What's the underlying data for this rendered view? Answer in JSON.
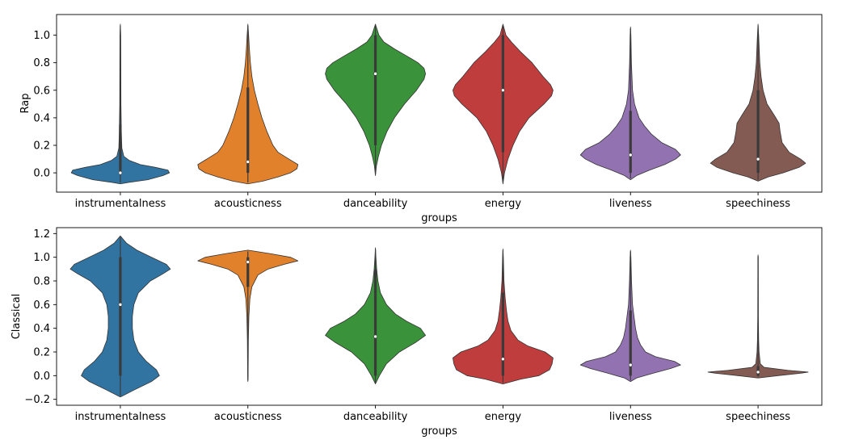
{
  "chart_data": [
    {
      "type": "violin",
      "xlabel": "groups",
      "ylabel": "Rap",
      "ylim": [
        -0.14,
        1.15
      ],
      "yticks": [
        0.0,
        0.2,
        0.4,
        0.6,
        0.8,
        1.0
      ],
      "ytick_labels": [
        "0.0",
        "0.2",
        "0.4",
        "0.6",
        "0.8",
        "1.0"
      ],
      "categories": [
        "instrumentalness",
        "acousticness",
        "danceability",
        "energy",
        "liveness",
        "speechiness"
      ],
      "colors": [
        "#3274a1",
        "#e1812c",
        "#3a923a",
        "#c03d3e",
        "#9372b2",
        "#845b53"
      ],
      "violins": [
        {
          "min": -0.08,
          "max": 1.08,
          "q1": 0.0,
          "median": 0.0,
          "q3": 0.0,
          "box_min": 0.0,
          "box_max": 0.35,
          "profile": [
            [
              -0.08,
              0.0
            ],
            [
              -0.07,
              0.15
            ],
            [
              -0.05,
              0.55
            ],
            [
              -0.02,
              0.85
            ],
            [
              0.0,
              0.98
            ],
            [
              0.02,
              0.95
            ],
            [
              0.04,
              0.7
            ],
            [
              0.06,
              0.4
            ],
            [
              0.09,
              0.18
            ],
            [
              0.12,
              0.07
            ],
            [
              0.18,
              0.03
            ],
            [
              0.3,
              0.02
            ],
            [
              0.5,
              0.012
            ],
            [
              0.8,
              0.01
            ],
            [
              1.0,
              0.008
            ],
            [
              1.08,
              0.0
            ]
          ]
        },
        {
          "min": -0.08,
          "max": 1.08,
          "q1": 0.02,
          "median": 0.08,
          "q3": 0.32,
          "box_min": 0.0,
          "box_max": 0.62,
          "profile": [
            [
              -0.08,
              0.0
            ],
            [
              -0.06,
              0.3
            ],
            [
              -0.03,
              0.6
            ],
            [
              0.0,
              0.85
            ],
            [
              0.03,
              0.98
            ],
            [
              0.06,
              1.0
            ],
            [
              0.1,
              0.82
            ],
            [
              0.15,
              0.6
            ],
            [
              0.2,
              0.5
            ],
            [
              0.3,
              0.38
            ],
            [
              0.4,
              0.28
            ],
            [
              0.5,
              0.2
            ],
            [
              0.6,
              0.13
            ],
            [
              0.7,
              0.08
            ],
            [
              0.8,
              0.05
            ],
            [
              0.9,
              0.03
            ],
            [
              1.0,
              0.015
            ],
            [
              1.08,
              0.0
            ]
          ]
        },
        {
          "min": -0.02,
          "max": 1.08,
          "q1": 0.6,
          "median": 0.72,
          "q3": 0.82,
          "box_min": 0.2,
          "box_max": 1.0,
          "profile": [
            [
              -0.02,
              0.0
            ],
            [
              0.05,
              0.02
            ],
            [
              0.12,
              0.06
            ],
            [
              0.2,
              0.12
            ],
            [
              0.3,
              0.23
            ],
            [
              0.4,
              0.38
            ],
            [
              0.5,
              0.58
            ],
            [
              0.6,
              0.82
            ],
            [
              0.68,
              0.97
            ],
            [
              0.72,
              1.0
            ],
            [
              0.76,
              0.97
            ],
            [
              0.8,
              0.85
            ],
            [
              0.85,
              0.62
            ],
            [
              0.9,
              0.38
            ],
            [
              0.95,
              0.17
            ],
            [
              1.0,
              0.07
            ],
            [
              1.08,
              0.0
            ]
          ]
        },
        {
          "min": -0.08,
          "max": 1.08,
          "q1": 0.5,
          "median": 0.6,
          "q3": 0.74,
          "box_min": 0.15,
          "box_max": 1.0,
          "profile": [
            [
              -0.08,
              0.0
            ],
            [
              0.0,
              0.03
            ],
            [
              0.1,
              0.1
            ],
            [
              0.2,
              0.2
            ],
            [
              0.3,
              0.33
            ],
            [
              0.4,
              0.52
            ],
            [
              0.5,
              0.82
            ],
            [
              0.56,
              0.97
            ],
            [
              0.6,
              1.0
            ],
            [
              0.64,
              0.95
            ],
            [
              0.7,
              0.8
            ],
            [
              0.8,
              0.58
            ],
            [
              0.88,
              0.35
            ],
            [
              0.95,
              0.17
            ],
            [
              1.0,
              0.06
            ],
            [
              1.08,
              0.0
            ]
          ]
        },
        {
          "min": -0.05,
          "max": 1.06,
          "q1": 0.1,
          "median": 0.13,
          "q3": 0.22,
          "box_min": 0.0,
          "box_max": 0.45,
          "profile": [
            [
              -0.05,
              0.0
            ],
            [
              -0.02,
              0.12
            ],
            [
              0.02,
              0.38
            ],
            [
              0.06,
              0.68
            ],
            [
              0.1,
              0.9
            ],
            [
              0.13,
              1.0
            ],
            [
              0.17,
              0.9
            ],
            [
              0.22,
              0.62
            ],
            [
              0.28,
              0.42
            ],
            [
              0.34,
              0.28
            ],
            [
              0.4,
              0.17
            ],
            [
              0.5,
              0.08
            ],
            [
              0.6,
              0.04
            ],
            [
              0.8,
              0.018
            ],
            [
              1.0,
              0.008
            ],
            [
              1.06,
              0.0
            ]
          ]
        },
        {
          "min": -0.06,
          "max": 1.08,
          "q1": 0.05,
          "median": 0.1,
          "q3": 0.28,
          "box_min": 0.0,
          "box_max": 0.6,
          "profile": [
            [
              -0.06,
              0.0
            ],
            [
              -0.03,
              0.2
            ],
            [
              0.0,
              0.5
            ],
            [
              0.04,
              0.82
            ],
            [
              0.07,
              0.95
            ],
            [
              0.1,
              0.85
            ],
            [
              0.15,
              0.62
            ],
            [
              0.22,
              0.48
            ],
            [
              0.3,
              0.44
            ],
            [
              0.36,
              0.42
            ],
            [
              0.42,
              0.32
            ],
            [
              0.5,
              0.18
            ],
            [
              0.6,
              0.1
            ],
            [
              0.7,
              0.06
            ],
            [
              0.8,
              0.035
            ],
            [
              1.0,
              0.012
            ],
            [
              1.08,
              0.0
            ]
          ]
        }
      ]
    },
    {
      "type": "violin",
      "xlabel": "groups",
      "ylabel": "Classical",
      "ylim": [
        -0.25,
        1.25
      ],
      "yticks": [
        -0.2,
        0.0,
        0.2,
        0.4,
        0.6,
        0.8,
        1.0,
        1.2
      ],
      "ytick_labels": [
        "−0.2",
        "0.0",
        "0.2",
        "0.4",
        "0.6",
        "0.8",
        "1.0",
        "1.2"
      ],
      "categories": [
        "instrumentalness",
        "acousticness",
        "danceability",
        "energy",
        "liveness",
        "speechiness"
      ],
      "colors": [
        "#3274a1",
        "#e1812c",
        "#3a923a",
        "#c03d3e",
        "#9372b2",
        "#845b53"
      ],
      "violins": [
        {
          "min": -0.18,
          "max": 1.18,
          "q1": 0.0,
          "median": 0.6,
          "q3": 0.9,
          "box_min": 0.0,
          "box_max": 1.0,
          "profile": [
            [
              -0.18,
              0.0
            ],
            [
              -0.12,
              0.28
            ],
            [
              -0.05,
              0.62
            ],
            [
              0.0,
              0.78
            ],
            [
              0.05,
              0.72
            ],
            [
              0.12,
              0.52
            ],
            [
              0.2,
              0.36
            ],
            [
              0.3,
              0.27
            ],
            [
              0.4,
              0.24
            ],
            [
              0.5,
              0.24
            ],
            [
              0.6,
              0.27
            ],
            [
              0.7,
              0.36
            ],
            [
              0.8,
              0.6
            ],
            [
              0.86,
              0.85
            ],
            [
              0.9,
              1.0
            ],
            [
              0.94,
              0.92
            ],
            [
              1.0,
              0.62
            ],
            [
              1.06,
              0.33
            ],
            [
              1.12,
              0.12
            ],
            [
              1.18,
              0.0
            ]
          ]
        },
        {
          "min": -0.05,
          "max": 1.06,
          "q1": 0.92,
          "median": 0.96,
          "q3": 0.99,
          "box_min": 0.75,
          "box_max": 1.0,
          "profile": [
            [
              -0.05,
              0.0
            ],
            [
              0.0,
              0.005
            ],
            [
              0.3,
              0.01
            ],
            [
              0.5,
              0.02
            ],
            [
              0.65,
              0.04
            ],
            [
              0.75,
              0.08
            ],
            [
              0.85,
              0.2
            ],
            [
              0.9,
              0.4
            ],
            [
              0.94,
              0.72
            ],
            [
              0.97,
              1.0
            ],
            [
              1.0,
              0.85
            ],
            [
              1.03,
              0.45
            ],
            [
              1.06,
              0.0
            ]
          ]
        },
        {
          "min": -0.07,
          "max": 1.08,
          "q1": 0.24,
          "median": 0.33,
          "q3": 0.42,
          "box_min": 0.0,
          "box_max": 0.9,
          "profile": [
            [
              -0.07,
              0.0
            ],
            [
              0.0,
              0.08
            ],
            [
              0.1,
              0.22
            ],
            [
              0.2,
              0.48
            ],
            [
              0.28,
              0.8
            ],
            [
              0.34,
              1.0
            ],
            [
              0.4,
              0.9
            ],
            [
              0.46,
              0.62
            ],
            [
              0.52,
              0.4
            ],
            [
              0.6,
              0.22
            ],
            [
              0.7,
              0.1
            ],
            [
              0.8,
              0.05
            ],
            [
              0.9,
              0.025
            ],
            [
              1.0,
              0.01
            ],
            [
              1.08,
              0.0
            ]
          ]
        },
        {
          "min": -0.07,
          "max": 1.07,
          "q1": 0.08,
          "median": 0.14,
          "q3": 0.28,
          "box_min": 0.0,
          "box_max": 0.7,
          "profile": [
            [
              -0.07,
              0.0
            ],
            [
              -0.03,
              0.35
            ],
            [
              0.0,
              0.72
            ],
            [
              0.05,
              0.93
            ],
            [
              0.1,
              0.98
            ],
            [
              0.15,
              1.0
            ],
            [
              0.2,
              0.84
            ],
            [
              0.25,
              0.5
            ],
            [
              0.3,
              0.3
            ],
            [
              0.38,
              0.16
            ],
            [
              0.46,
              0.1
            ],
            [
              0.55,
              0.07
            ],
            [
              0.65,
              0.045
            ],
            [
              0.8,
              0.02
            ],
            [
              1.0,
              0.008
            ],
            [
              1.07,
              0.0
            ]
          ]
        },
        {
          "min": -0.05,
          "max": 1.06,
          "q1": 0.06,
          "median": 0.09,
          "q3": 0.18,
          "box_min": 0.0,
          "box_max": 0.55,
          "profile": [
            [
              -0.05,
              0.0
            ],
            [
              -0.02,
              0.12
            ],
            [
              0.02,
              0.45
            ],
            [
              0.06,
              0.8
            ],
            [
              0.09,
              1.0
            ],
            [
              0.12,
              0.88
            ],
            [
              0.16,
              0.5
            ],
            [
              0.2,
              0.3
            ],
            [
              0.26,
              0.2
            ],
            [
              0.32,
              0.14
            ],
            [
              0.4,
              0.1
            ],
            [
              0.5,
              0.07
            ],
            [
              0.6,
              0.04
            ],
            [
              0.8,
              0.02
            ],
            [
              1.0,
              0.008
            ],
            [
              1.06,
              0.0
            ]
          ]
        },
        {
          "min": -0.02,
          "max": 1.02,
          "q1": 0.02,
          "median": 0.03,
          "q3": 0.04,
          "box_min": 0.0,
          "box_max": 0.08,
          "profile": [
            [
              -0.02,
              0.0
            ],
            [
              0.0,
              0.4
            ],
            [
              0.02,
              0.85
            ],
            [
              0.03,
              1.0
            ],
            [
              0.045,
              0.6
            ],
            [
              0.07,
              0.12
            ],
            [
              0.1,
              0.045
            ],
            [
              0.2,
              0.02
            ],
            [
              0.3,
              0.012
            ],
            [
              0.5,
              0.006
            ],
            [
              1.0,
              0.004
            ],
            [
              1.02,
              0.0
            ]
          ]
        }
      ]
    }
  ]
}
